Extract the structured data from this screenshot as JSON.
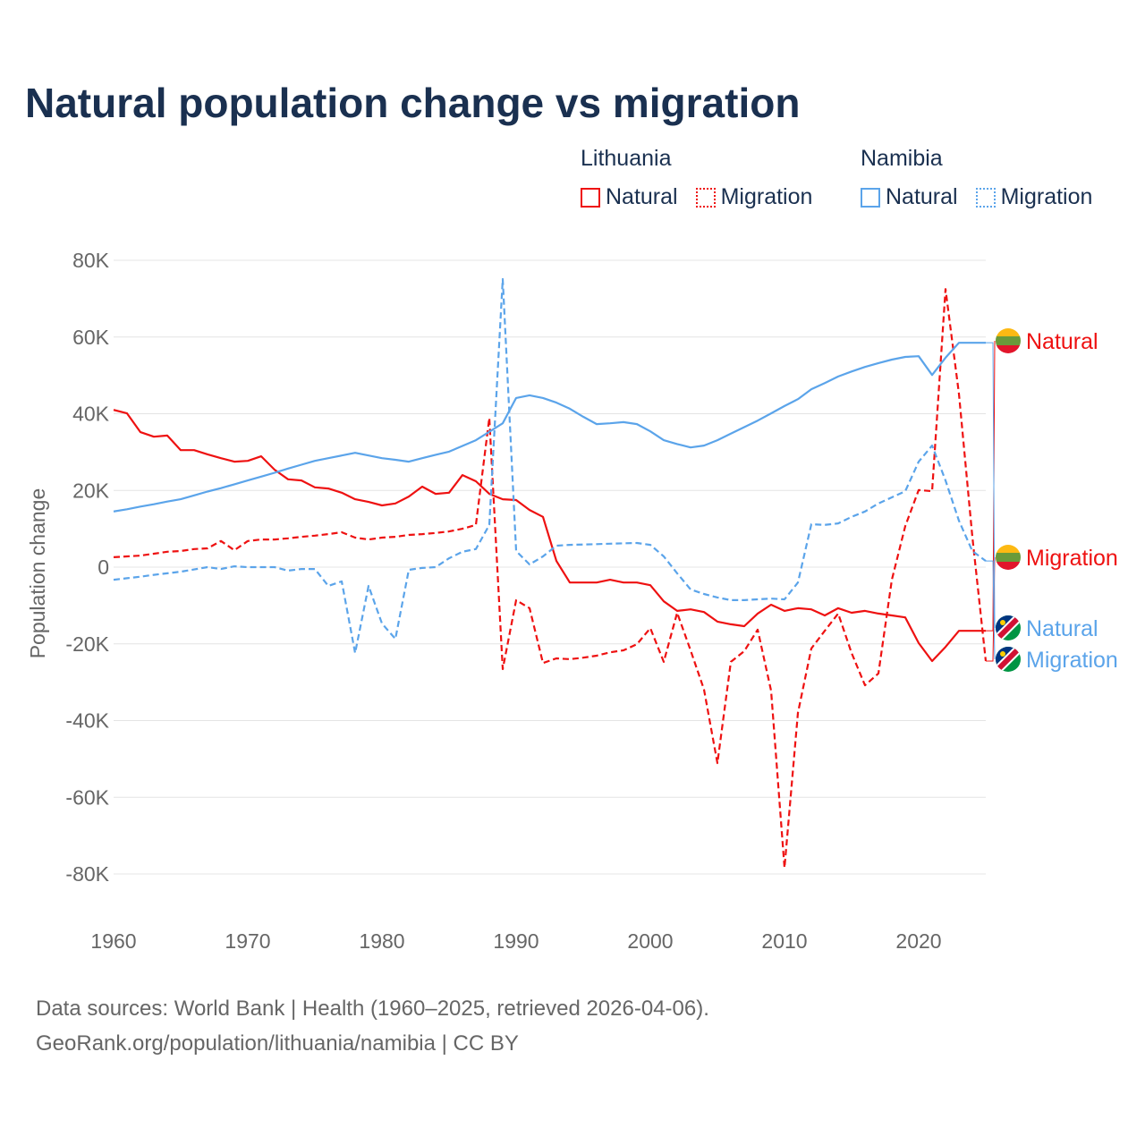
{
  "title": "Natural population change vs migration",
  "legend": {
    "groups": [
      {
        "country": "Lithuania",
        "items": [
          {
            "label": "Natural",
            "style": "solid"
          },
          {
            "label": "Migration",
            "style": "dotted"
          }
        ],
        "color": "#ee1111"
      },
      {
        "country": "Namibia",
        "items": [
          {
            "label": "Natural",
            "style": "solid"
          },
          {
            "label": "Migration",
            "style": "dotted"
          }
        ],
        "color": "#5ba4ea"
      }
    ]
  },
  "source": {
    "line1": "Data sources: World Bank | Health (1960–2025, retrieved 2026-04-06).",
    "line2": "GeoRank.org/population/lithuania/namibia | CC BY"
  },
  "chart_data": {
    "type": "line",
    "title": "Natural population change vs migration",
    "xlabel": "",
    "ylabel": "Population change",
    "xlim": [
      1960,
      2025
    ],
    "ylim": [
      -80000,
      80000
    ],
    "x_ticks": [
      1960,
      1970,
      1980,
      1990,
      2000,
      2010,
      2020
    ],
    "x_tick_labels": [
      "1960",
      "1970",
      "1980",
      "1990",
      "2000",
      "2010",
      "2020"
    ],
    "y_ticks": [
      80000,
      60000,
      40000,
      20000,
      0,
      -20000,
      -40000,
      -60000,
      -80000
    ],
    "y_tick_labels": [
      "80K",
      "60K",
      "40K",
      "20K",
      "0",
      "-20K",
      "-40K",
      "-60K",
      "-80K"
    ],
    "grid": true,
    "legend_position": "top-right",
    "x_start": 1960,
    "series": [
      {
        "name": "Lithuania Natural",
        "end_label": "Natural",
        "flag": "lithuania",
        "color": "#ee1111",
        "dash": "solid",
        "values": [
          41.0,
          40.1,
          35.2,
          34.0,
          34.3,
          30.5,
          30.5,
          29.4,
          28.4,
          27.5,
          27.7,
          28.9,
          25.4,
          22.9,
          22.6,
          20.8,
          20.5,
          19.4,
          17.7,
          17.0,
          16.1,
          16.6,
          18.4,
          21.0,
          19.1,
          19.4,
          24.0,
          22.4,
          19.1,
          17.7,
          17.5,
          14.9,
          13.1,
          1.6,
          -4.0,
          -4.0,
          -4.0,
          -3.3,
          -4.0,
          -4.0,
          -4.7,
          -8.9,
          -11.4,
          -11.0,
          -11.7,
          -14.2,
          -14.9,
          -15.4,
          -12.1,
          -9.8,
          -11.4,
          -10.7,
          -11.0,
          -12.6,
          -10.7,
          -11.9,
          -11.4,
          -12.1,
          -12.6,
          -13.1,
          -19.8,
          -24.5,
          -20.8,
          -16.6,
          -16.6,
          -16.6
        ]
      },
      {
        "name": "Lithuania Migration",
        "end_label": "Migration",
        "flag": "lithuania",
        "color": "#ee1111",
        "dash": "dashed",
        "values": [
          2.6,
          2.8,
          3.0,
          3.5,
          4.0,
          4.2,
          4.7,
          4.9,
          6.8,
          4.4,
          6.8,
          7.2,
          7.2,
          7.5,
          7.9,
          8.2,
          8.6,
          9.1,
          7.7,
          7.2,
          7.7,
          7.9,
          8.4,
          8.6,
          8.9,
          9.3,
          10.0,
          11.0,
          38.9,
          -26.6,
          -8.6,
          -10.7,
          -25.0,
          -23.8,
          -24.0,
          -23.6,
          -23.1,
          -22.2,
          -21.7,
          -20.1,
          -15.9,
          -24.7,
          -11.9,
          -21.7,
          -31.9,
          -51.1,
          -24.7,
          -21.9,
          -16.3,
          -32.2,
          -78.4,
          -38.0,
          -21.2,
          -16.6,
          -12.1,
          -22.4,
          -30.8,
          -27.7,
          -3.3,
          10.7,
          20.1,
          19.8,
          72.5,
          45.2,
          7.9,
          -24.5
        ]
      },
      {
        "name": "Namibia Natural",
        "end_label": "Natural",
        "flag": "namibia",
        "color": "#5ba4ea",
        "dash": "solid",
        "values": [
          14.5,
          15.1,
          15.8,
          16.4,
          17.1,
          17.7,
          18.7,
          19.7,
          20.6,
          21.6,
          22.6,
          23.6,
          24.6,
          25.7,
          26.7,
          27.7,
          28.4,
          29.1,
          29.8,
          29.1,
          28.4,
          28.0,
          27.5,
          28.4,
          29.3,
          30.1,
          31.6,
          33.1,
          35.3,
          37.5,
          44.1,
          44.8,
          44.1,
          42.9,
          41.3,
          39.2,
          37.3,
          37.5,
          37.8,
          37.3,
          35.4,
          33.1,
          32.1,
          31.2,
          31.7,
          33.1,
          34.8,
          36.5,
          38.2,
          40.1,
          42.0,
          43.8,
          46.4,
          48.0,
          49.7,
          51.0,
          52.2,
          53.2,
          54.1,
          54.8,
          55.0,
          50.1,
          54.6,
          58.5,
          58.5,
          58.5
        ]
      },
      {
        "name": "Namibia Migration",
        "end_label": "Migration",
        "flag": "namibia",
        "color": "#5ba4ea",
        "dash": "dashed",
        "values": [
          -3.3,
          -2.9,
          -2.5,
          -2.0,
          -1.6,
          -1.2,
          -0.6,
          0.0,
          -0.5,
          0.2,
          0.0,
          0.0,
          0.0,
          -0.9,
          -0.5,
          -0.5,
          -4.9,
          -3.7,
          -22.4,
          -4.9,
          -14.7,
          -18.7,
          -0.7,
          -0.2,
          0.0,
          2.3,
          4.0,
          4.7,
          11.0,
          75.1,
          4.2,
          0.7,
          2.8,
          5.6,
          5.8,
          5.9,
          6.0,
          6.1,
          6.2,
          6.3,
          5.8,
          2.8,
          -1.6,
          -5.8,
          -7.0,
          -7.9,
          -8.6,
          -8.6,
          -8.4,
          -8.2,
          -8.4,
          -4.0,
          11.2,
          11.0,
          11.4,
          13.1,
          14.5,
          16.6,
          18.2,
          19.8,
          27.5,
          31.7,
          22.6,
          12.1,
          4.2,
          1.6
        ]
      }
    ],
    "value_unit": "thousands"
  }
}
